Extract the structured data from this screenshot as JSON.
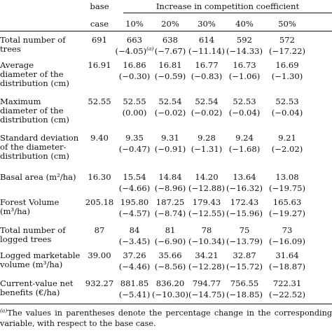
{
  "header": {
    "base_line1": "base",
    "base_line2": "case",
    "group_title": "Increase in competition coefficient",
    "columns": [
      "10%",
      "20%",
      "30%",
      "40%",
      "50%"
    ]
  },
  "rows": [
    {
      "label": [
        "Total number of",
        "trees"
      ],
      "base": "691",
      "values": [
        "663",
        "638",
        "614",
        "592",
        "572"
      ],
      "changes": [
        "(−4.05)",
        "(−7.67)",
        "(−11.14)",
        "(−14.33)",
        "(−17.22)"
      ]
    },
    {
      "label": [
        "Average",
        "diameter of the",
        "distribution (cm)"
      ],
      "base": "16.91",
      "values": [
        "16.86",
        "16.81",
        "16.77",
        "16.73",
        "16.69"
      ],
      "changes": [
        "(−0.30)",
        "(−0.59)",
        "(−0.83)",
        "(−1.06)",
        "(−1.30)"
      ]
    },
    {
      "label": [
        "Maximum",
        "diameter of the",
        "distribution (cm)"
      ],
      "base": "52.55",
      "values": [
        "52.55",
        "52.54",
        "52.54",
        "52.53",
        "52.53"
      ],
      "changes": [
        "(0.00)",
        "(−0.02)",
        "(−0.02)",
        "(−0.04)",
        "(−0.04)"
      ]
    },
    {
      "label": [
        "Standard deviation",
        "of the diameter-",
        "distribution (cm)"
      ],
      "base": "9.40",
      "values": [
        "9.35",
        "9.31",
        "9.28",
        "9.24",
        "9.21"
      ],
      "changes": [
        "(−0.47)",
        "(−0.91)",
        "(−1.31)",
        "(−1.68)",
        "(−2.02)"
      ]
    },
    {
      "label": [
        "Basal area (m²/ha)"
      ],
      "base": "16.30",
      "values": [
        "15.54",
        "14.84",
        "14.20",
        "13.64",
        "13.08"
      ],
      "changes": [
        "(−4.66)",
        "(−8.96)",
        "(−12.88)",
        "(−16.32)",
        "(−19.75)"
      ]
    },
    {
      "label": [
        "Forest Volume",
        "(m³/ha)"
      ],
      "base": "205.18",
      "values": [
        "195.80",
        "187.25",
        "179.43",
        "172.43",
        "165.63"
      ],
      "changes": [
        "(−4.57)",
        "(−8.74)",
        "(−12.55)",
        "(−15.96)",
        "(−19.27)"
      ]
    },
    {
      "label": [
        "Total number of",
        "logged trees"
      ],
      "base": "87",
      "values": [
        "84",
        "81",
        "78",
        "75",
        "73"
      ],
      "changes": [
        "(−3.45)",
        "(−6.90)",
        "(−10.34)",
        "(−13.79)",
        "(−16.09)"
      ]
    },
    {
      "label": [
        "Logged marketable",
        "volume (m³/ha)"
      ],
      "base": "39.00",
      "values": [
        "37.26",
        "35.66",
        "34.21",
        "32.87",
        "31.64"
      ],
      "changes": [
        "(−4.46)",
        "(−8.56)",
        "(−12.28)",
        "(−15.72)",
        "(−18.87)"
      ]
    },
    {
      "label": [
        "Current-value net",
        "benefits (€/ha)"
      ],
      "base": "932.27",
      "values": [
        "881.85",
        "836.20",
        "794.77",
        "756.55",
        "722.31"
      ],
      "changes": [
        "(−5.41)",
        "(−10.30)",
        "(−14.75)",
        "(−18.85)",
        "(−22.52)"
      ]
    }
  ],
  "footnote": {
    "marker": "(a)",
    "line1": "The values in parentheses denote the percentage change in the corresponding",
    "line2": "variable, with respect to the base case."
  }
}
